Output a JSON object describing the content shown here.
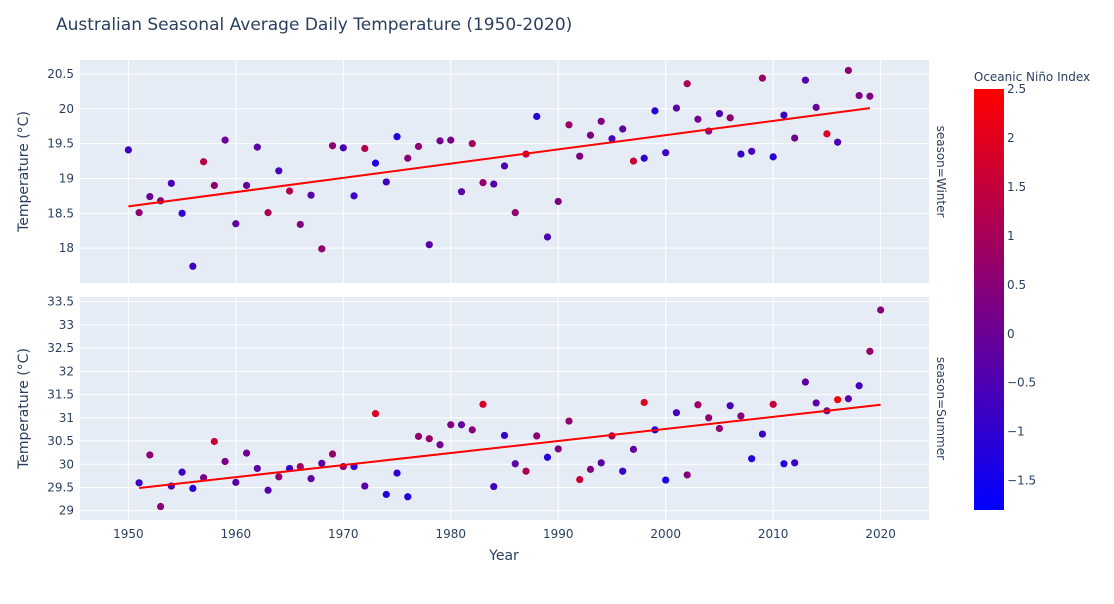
{
  "chart_data": {
    "type": "scatter",
    "title": "Australian Seasonal Average Daily Temperature (1950-2020)",
    "xlabel": "Year",
    "ylabel": "Temperature (°C)",
    "xlim": [
      1945.5,
      2024.5
    ],
    "xticks": [
      1950,
      1960,
      1970,
      1980,
      1990,
      2000,
      2010,
      2020
    ],
    "grid": true,
    "trendline_color": "#ff0000",
    "colorbar": {
      "title": "Oceanic Niño Index",
      "range": [
        -1.8,
        2.5
      ],
      "ticks": [
        2.5,
        2,
        1.5,
        1,
        0.5,
        0,
        -0.5,
        -1,
        -1.5
      ],
      "colorscale": [
        "#0000ff",
        "#ff0000"
      ]
    },
    "facets": [
      {
        "label": "season=Winter",
        "ylim": [
          17.5,
          20.7
        ],
        "yticks": [
          18,
          18.5,
          19,
          19.5,
          20,
          20.5
        ],
        "trend": {
          "x": [
            1950,
            2019
          ],
          "y": [
            18.6,
            20.01
          ]
        },
        "points": [
          [
            1950,
            19.41,
            -0.8
          ],
          [
            1951,
            18.51,
            0.6
          ],
          [
            1952,
            18.74,
            0.0
          ],
          [
            1953,
            18.68,
            0.5
          ],
          [
            1954,
            18.93,
            -0.5
          ],
          [
            1955,
            18.5,
            -1.0
          ],
          [
            1956,
            17.74,
            -0.7
          ],
          [
            1957,
            19.24,
            1.3
          ],
          [
            1958,
            18.9,
            0.6
          ],
          [
            1959,
            19.55,
            0.0
          ],
          [
            1960,
            18.35,
            -0.2
          ],
          [
            1961,
            18.9,
            -0.1
          ],
          [
            1962,
            19.45,
            -0.3
          ],
          [
            1963,
            18.51,
            1.1
          ],
          [
            1964,
            19.11,
            -0.6
          ],
          [
            1965,
            18.82,
            1.2
          ],
          [
            1966,
            18.34,
            0.4
          ],
          [
            1967,
            18.76,
            -0.3
          ],
          [
            1968,
            17.99,
            0.7
          ],
          [
            1969,
            19.47,
            0.6
          ],
          [
            1970,
            19.44,
            -0.5
          ],
          [
            1971,
            18.75,
            -0.8
          ],
          [
            1972,
            19.43,
            1.2
          ],
          [
            1973,
            19.22,
            -1.2
          ],
          [
            1974,
            18.95,
            -0.7
          ],
          [
            1975,
            19.6,
            -1.2
          ],
          [
            1976,
            19.29,
            0.5
          ],
          [
            1977,
            19.46,
            0.6
          ],
          [
            1978,
            18.05,
            -0.3
          ],
          [
            1979,
            19.54,
            0.1
          ],
          [
            1980,
            19.55,
            0.2
          ],
          [
            1981,
            18.81,
            -0.3
          ],
          [
            1982,
            19.5,
            1.0
          ],
          [
            1983,
            18.94,
            0.7
          ],
          [
            1984,
            18.92,
            -0.4
          ],
          [
            1985,
            19.18,
            -0.5
          ],
          [
            1986,
            18.51,
            0.6
          ],
          [
            1987,
            19.35,
            1.5
          ],
          [
            1988,
            19.89,
            -1.2
          ],
          [
            1989,
            18.16,
            -0.5
          ],
          [
            1990,
            18.67,
            0.3
          ],
          [
            1991,
            19.77,
            0.8
          ],
          [
            1992,
            19.32,
            0.3
          ],
          [
            1993,
            19.62,
            0.3
          ],
          [
            1994,
            19.82,
            0.4
          ],
          [
            1995,
            19.57,
            -0.6
          ],
          [
            1996,
            19.71,
            -0.2
          ],
          [
            1997,
            19.25,
            1.6
          ],
          [
            1998,
            19.29,
            -1.0
          ],
          [
            1999,
            19.97,
            -1.1
          ],
          [
            2000,
            19.37,
            -0.7
          ],
          [
            2001,
            20.01,
            -0.3
          ],
          [
            2002,
            20.36,
            1.1
          ],
          [
            2003,
            19.85,
            0.2
          ],
          [
            2004,
            19.68,
            0.6
          ],
          [
            2005,
            19.93,
            -0.5
          ],
          [
            2006,
            19.87,
            0.6
          ],
          [
            2007,
            19.35,
            -0.9
          ],
          [
            2008,
            19.39,
            -0.6
          ],
          [
            2009,
            20.44,
            0.8
          ],
          [
            2010,
            19.31,
            -1.1
          ],
          [
            2011,
            19.91,
            -0.8
          ],
          [
            2012,
            19.58,
            0.1
          ],
          [
            2013,
            20.41,
            -0.3
          ],
          [
            2014,
            20.02,
            0.0
          ],
          [
            2015,
            19.64,
            1.9
          ],
          [
            2016,
            19.52,
            -0.5
          ],
          [
            2017,
            20.55,
            0.6
          ],
          [
            2018,
            20.19,
            0.3
          ],
          [
            2019,
            20.18,
            0.4
          ]
        ]
      },
      {
        "label": "season=Summer",
        "ylim": [
          28.8,
          33.6
        ],
        "yticks": [
          29,
          29.5,
          30,
          30.5,
          31,
          31.5,
          32,
          32.5,
          33,
          33.5
        ],
        "trend": {
          "x": [
            1951,
            2020
          ],
          "y": [
            29.49,
            31.28
          ]
        },
        "points": [
          [
            1951,
            29.6,
            -0.8
          ],
          [
            1952,
            30.2,
            0.6
          ],
          [
            1953,
            29.09,
            0.5
          ],
          [
            1954,
            29.53,
            -0.5
          ],
          [
            1955,
            29.83,
            -0.8
          ],
          [
            1956,
            29.48,
            -1.1
          ],
          [
            1957,
            29.71,
            0.2
          ],
          [
            1958,
            30.49,
            1.6
          ],
          [
            1959,
            30.06,
            0.3
          ],
          [
            1960,
            29.61,
            -0.3
          ],
          [
            1961,
            30.24,
            0.1
          ],
          [
            1962,
            29.91,
            -0.2
          ],
          [
            1963,
            29.44,
            -0.4
          ],
          [
            1964,
            29.73,
            0.6
          ],
          [
            1965,
            29.91,
            -0.8
          ],
          [
            1966,
            29.95,
            0.9
          ],
          [
            1967,
            29.69,
            -0.2
          ],
          [
            1968,
            30.02,
            -0.3
          ],
          [
            1969,
            30.22,
            0.7
          ],
          [
            1970,
            29.95,
            0.8
          ],
          [
            1971,
            29.95,
            -1.0
          ],
          [
            1972,
            29.53,
            -0.3
          ],
          [
            1973,
            31.09,
            1.9
          ],
          [
            1974,
            29.35,
            -1.2
          ],
          [
            1975,
            29.81,
            -1.0
          ],
          [
            1976,
            29.3,
            -1.2
          ],
          [
            1977,
            30.6,
            0.7
          ],
          [
            1978,
            30.55,
            0.8
          ],
          [
            1979,
            30.42,
            0.1
          ],
          [
            1980,
            30.85,
            0.4
          ],
          [
            1981,
            30.85,
            -0.2
          ],
          [
            1982,
            30.74,
            0.5
          ],
          [
            1983,
            31.29,
            1.8
          ],
          [
            1984,
            29.52,
            -0.7
          ],
          [
            1985,
            30.62,
            -0.9
          ],
          [
            1986,
            30.01,
            -0.3
          ],
          [
            1987,
            29.85,
            1.1
          ],
          [
            1988,
            30.61,
            0.6
          ],
          [
            1989,
            30.15,
            -1.2
          ],
          [
            1990,
            30.33,
            0.3
          ],
          [
            1991,
            30.93,
            0.7
          ],
          [
            1992,
            29.67,
            1.6
          ],
          [
            1993,
            29.89,
            0.4
          ],
          [
            1994,
            30.03,
            -0.3
          ],
          [
            1995,
            30.61,
            1.0
          ],
          [
            1996,
            29.85,
            -0.8
          ],
          [
            1997,
            30.32,
            -0.2
          ],
          [
            1998,
            31.33,
            2.0
          ],
          [
            1999,
            30.74,
            -1.3
          ],
          [
            2000,
            29.66,
            -1.3
          ],
          [
            2001,
            31.11,
            -0.7
          ],
          [
            2002,
            29.77,
            0.5
          ],
          [
            2003,
            31.28,
            0.9
          ],
          [
            2004,
            31.0,
            0.6
          ],
          [
            2005,
            30.77,
            0.6
          ],
          [
            2006,
            31.26,
            -0.6
          ],
          [
            2007,
            31.04,
            0.4
          ],
          [
            2008,
            30.12,
            -1.2
          ],
          [
            2009,
            30.65,
            -0.8
          ],
          [
            2010,
            31.29,
            1.5
          ],
          [
            2011,
            30.01,
            -1.2
          ],
          [
            2012,
            30.03,
            -0.8
          ],
          [
            2013,
            31.77,
            -0.2
          ],
          [
            2014,
            31.32,
            -0.3
          ],
          [
            2015,
            31.15,
            0.3
          ],
          [
            2016,
            31.39,
            2.3
          ],
          [
            2017,
            31.41,
            -0.3
          ],
          [
            2018,
            31.69,
            -0.7
          ],
          [
            2019,
            32.43,
            0.7
          ],
          [
            2020,
            33.32,
            0.5
          ]
        ]
      }
    ]
  }
}
